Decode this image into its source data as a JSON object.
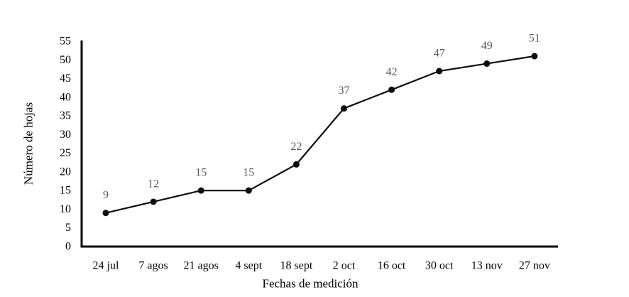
{
  "chart_data": {
    "type": "line",
    "title": "",
    "categories": [
      "24 jul",
      "7 agos",
      "21 agos",
      "4 sept",
      "18 sept",
      "2 oct",
      "16 oct",
      "30 oct",
      "13 nov",
      "27 nov"
    ],
    "values": [
      9,
      12,
      15,
      15,
      22,
      37,
      42,
      47,
      49,
      51
    ],
    "series_name": "Número de hojas",
    "xlabel": "Fechas de medición",
    "ylabel": "Número de hojas",
    "ylim": [
      0,
      55
    ],
    "ytick_step": 5,
    "yticks": [
      0,
      5,
      10,
      15,
      20,
      25,
      30,
      35,
      40,
      45,
      50,
      55
    ],
    "grid": false,
    "legend_position": "none",
    "show_data_labels": true,
    "marker": "filled-circle",
    "colors": {
      "line": "#0d0d0d",
      "marker": "#0d0d0d",
      "data_label": "#595959",
      "axis": "#000000",
      "tick_label": "#000000",
      "background": "#ffffff"
    }
  }
}
